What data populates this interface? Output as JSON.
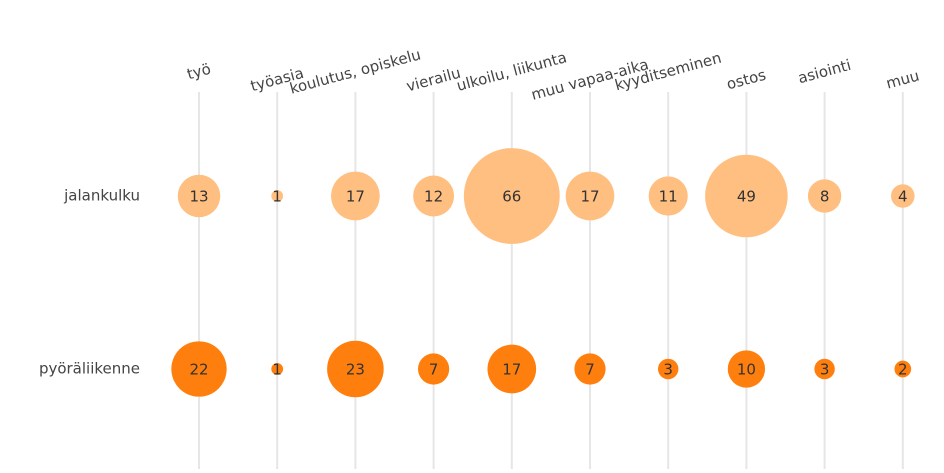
{
  "chart_data": {
    "type": "bubble-matrix",
    "categories": [
      "työ",
      "työasia",
      "koulutus, opiskelu",
      "vierailu",
      "ulkoilu, liikunta",
      "muu vapaa-aika",
      "kyyditseminen",
      "ostos",
      "asiointi",
      "muu"
    ],
    "series": [
      {
        "name": "jalankulku",
        "color": "#ffbf80",
        "values": [
          13,
          1,
          17,
          12,
          66,
          17,
          11,
          49,
          8,
          4
        ]
      },
      {
        "name": "pyöräliikenne",
        "color": "#ff7f0e",
        "values": [
          22,
          1,
          23,
          7,
          17,
          7,
          3,
          10,
          3,
          2
        ]
      }
    ],
    "grid": true
  }
}
